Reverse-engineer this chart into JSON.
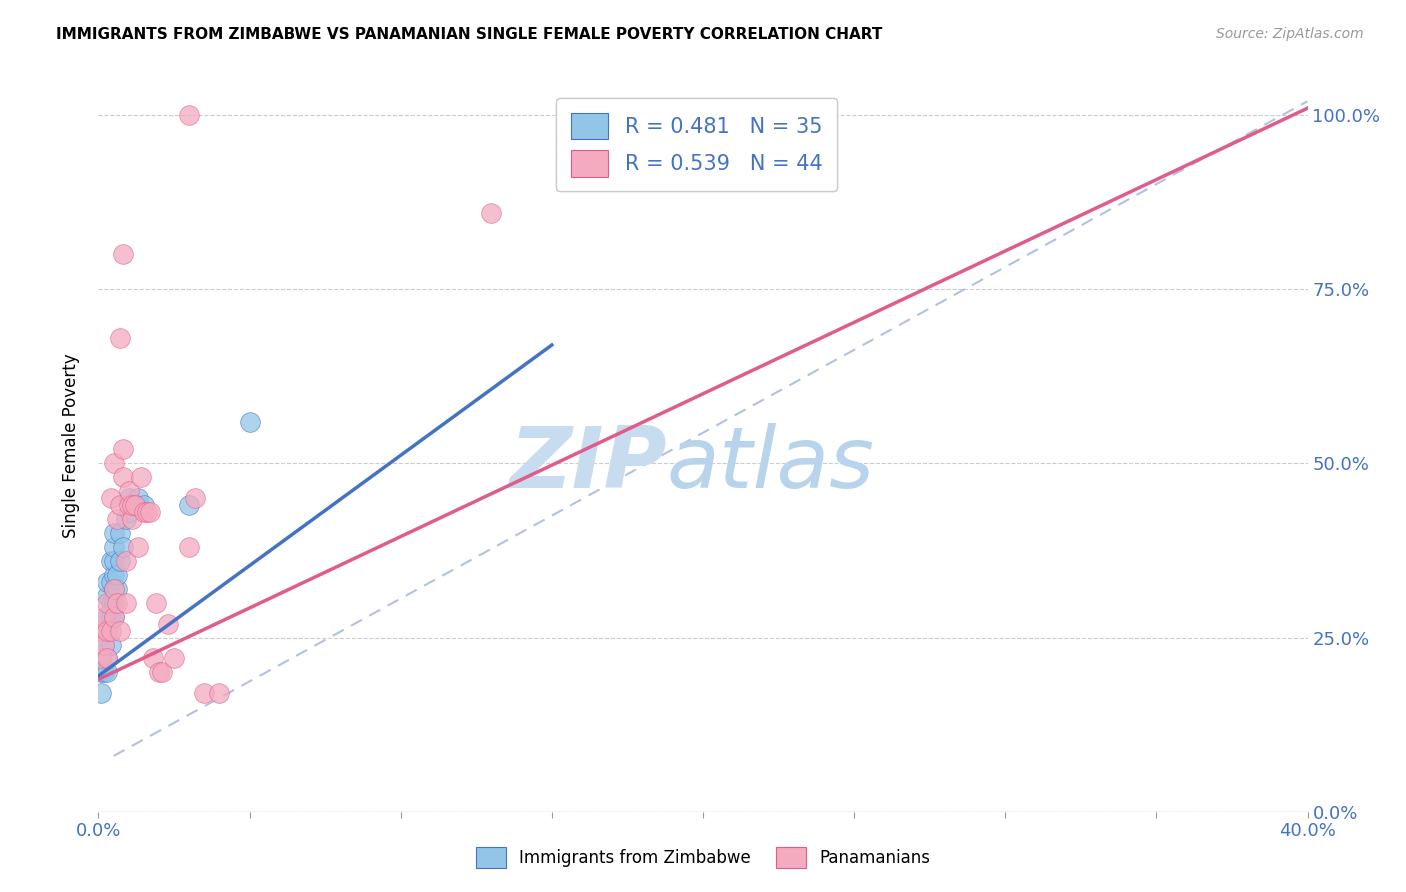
{
  "title": "IMMIGRANTS FROM ZIMBABWE VS PANAMANIAN SINGLE FEMALE POVERTY CORRELATION CHART",
  "source": "Source: ZipAtlas.com",
  "ylabel": "Single Female Poverty",
  "yticks": [
    "0.0%",
    "25.0%",
    "50.0%",
    "75.0%",
    "100.0%"
  ],
  "ytick_vals": [
    0.0,
    0.25,
    0.5,
    0.75,
    1.0
  ],
  "legend_blue_R": "R = 0.481",
  "legend_blue_N": "N = 35",
  "legend_pink_R": "R = 0.539",
  "legend_pink_N": "N = 44",
  "blue_color": "#92C5E8",
  "pink_color": "#F4AABF",
  "blue_line_color": "#4472C4",
  "pink_line_color": "#E05C8A",
  "dashed_line_color": "#AABBDD",
  "watermark_zip": "ZIP",
  "watermark_atlas": "atlas",
  "watermark_color": "#C8DCF0",
  "blue_scatter_x": [
    0.001,
    0.001,
    0.002,
    0.002,
    0.003,
    0.003,
    0.003,
    0.003,
    0.003,
    0.003,
    0.004,
    0.004,
    0.004,
    0.004,
    0.004,
    0.005,
    0.005,
    0.005,
    0.005,
    0.005,
    0.005,
    0.005,
    0.006,
    0.006,
    0.007,
    0.007,
    0.008,
    0.009,
    0.01,
    0.01,
    0.012,
    0.013,
    0.015,
    0.03,
    0.05
  ],
  "blue_scatter_y": [
    0.17,
    0.2,
    0.2,
    0.24,
    0.2,
    0.22,
    0.26,
    0.28,
    0.31,
    0.33,
    0.24,
    0.28,
    0.3,
    0.33,
    0.36,
    0.28,
    0.3,
    0.32,
    0.34,
    0.36,
    0.38,
    0.4,
    0.32,
    0.34,
    0.36,
    0.4,
    0.38,
    0.42,
    0.43,
    0.45,
    0.44,
    0.45,
    0.44,
    0.44,
    0.56
  ],
  "pink_scatter_x": [
    0.001,
    0.001,
    0.002,
    0.002,
    0.003,
    0.003,
    0.003,
    0.004,
    0.004,
    0.005,
    0.005,
    0.005,
    0.006,
    0.006,
    0.007,
    0.007,
    0.008,
    0.008,
    0.009,
    0.009,
    0.01,
    0.01,
    0.011,
    0.011,
    0.012,
    0.013,
    0.014,
    0.015,
    0.016,
    0.017,
    0.018,
    0.019,
    0.02,
    0.021,
    0.023,
    0.025,
    0.03,
    0.032,
    0.035,
    0.04,
    0.007,
    0.008,
    0.03,
    0.13
  ],
  "pink_scatter_y": [
    0.22,
    0.26,
    0.24,
    0.28,
    0.22,
    0.26,
    0.3,
    0.26,
    0.45,
    0.28,
    0.32,
    0.5,
    0.3,
    0.42,
    0.44,
    0.26,
    0.48,
    0.52,
    0.3,
    0.36,
    0.44,
    0.46,
    0.42,
    0.44,
    0.44,
    0.38,
    0.48,
    0.43,
    0.43,
    0.43,
    0.22,
    0.3,
    0.2,
    0.2,
    0.27,
    0.22,
    0.38,
    0.45,
    0.17,
    0.17,
    0.68,
    0.8,
    1.0,
    0.86
  ],
  "xmin": 0.0,
  "xmax": 0.4,
  "ymin": 0.0,
  "ymax": 1.05,
  "blue_line_x0": 0.0,
  "blue_line_y0": 0.195,
  "blue_line_x1": 0.15,
  "blue_line_y1": 0.67,
  "pink_line_x0": 0.0,
  "pink_line_y0": 0.19,
  "pink_line_x1": 0.4,
  "pink_line_y1": 1.01,
  "dash_line_x0": 0.005,
  "dash_line_y0": 0.08,
  "dash_line_x1": 0.4,
  "dash_line_y1": 1.02
}
